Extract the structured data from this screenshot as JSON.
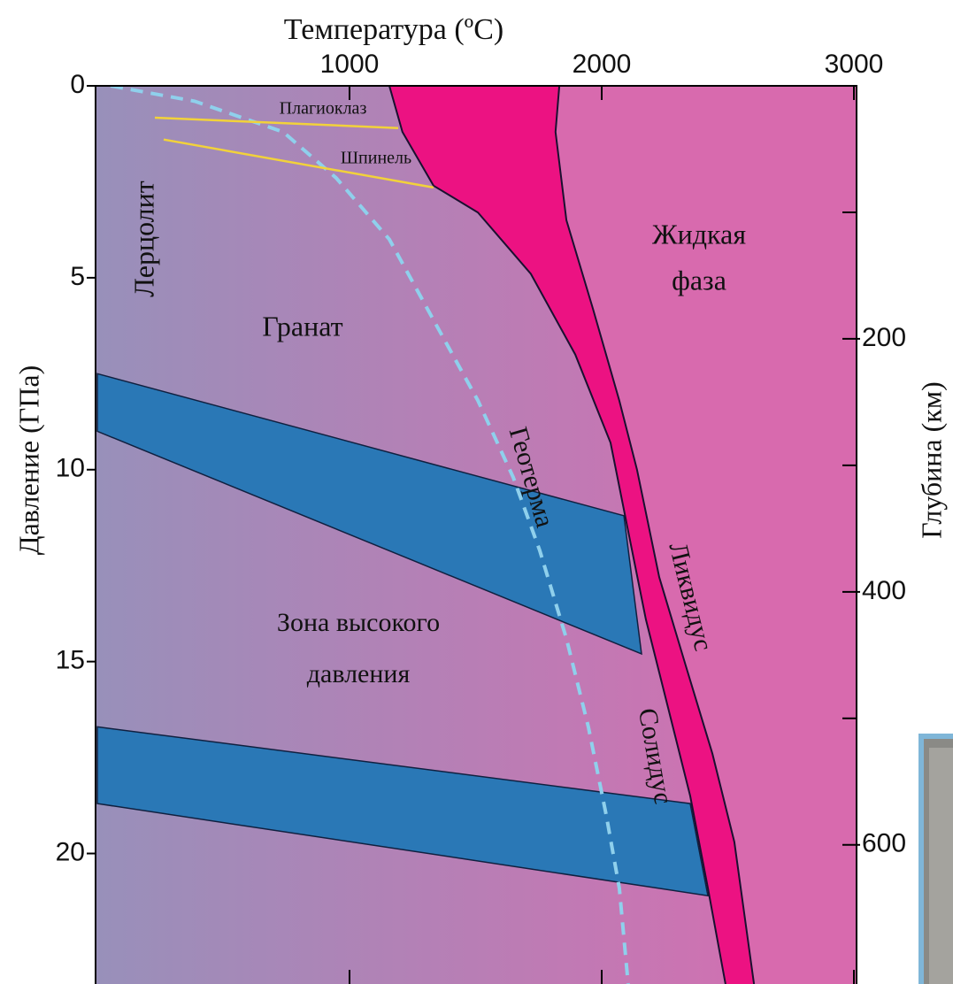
{
  "chart_data": {
    "type": "phase_diagram",
    "title": "Температура (ºC)",
    "ylabel": "Давление (ГПа)",
    "y2label": "Глубина (км)",
    "xlim": [
      0,
      3000
    ],
    "xticks": [
      1000,
      2000,
      3000
    ],
    "ylim": [
      0,
      23.4
    ],
    "yticks": [
      0,
      5,
      10,
      15,
      20
    ],
    "y2lim": [
      0,
      710
    ],
    "y2ticks": [
      200,
      400,
      600
    ],
    "y2minor_ticks": [
      100,
      300,
      500
    ],
    "background_colors": [
      "#9890ba",
      "#d96cb0"
    ],
    "melt_color": "#ec1282",
    "liquid_color": "#d86aae",
    "curves": [
      {
        "name": "Солидус",
        "color": "#1a1030",
        "x": [
          1158,
          1210,
          1333,
          1509,
          1719,
          1895,
          2035,
          2105,
          2175,
          2263,
          2351,
          2421,
          2491
        ],
        "y": [
          0,
          1.2,
          2.6,
          3.3,
          4.9,
          7.0,
          9.3,
          11.6,
          13.9,
          16.2,
          18.5,
          20.9,
          23.4
        ]
      },
      {
        "name": "Ликвидус",
        "color": "#1a1030",
        "x": [
          1832,
          1817,
          1860,
          1965,
          2070,
          2140,
          2228,
          2333,
          2439,
          2526,
          2604
        ],
        "y": [
          0,
          1.2,
          3.5,
          5.8,
          8.2,
          10,
          12.8,
          15.1,
          17.4,
          19.7,
          23.4
        ]
      },
      {
        "name": "Геотерма",
        "color": "#8fd0ec",
        "x": [
          53,
          386,
          737,
          947,
          1158,
          1333,
          1509,
          1649,
          1754,
          1860,
          1947,
          2018,
          2070,
          2105
        ],
        "y": [
          0,
          0.4,
          1.2,
          2.4,
          4,
          6.1,
          8.2,
          10.2,
          12.1,
          14.4,
          16.7,
          19,
          20.9,
          23.4
        ]
      },
      {
        "name": "Плагиоклаз",
        "color": "#f2d23a",
        "x": [
          228,
          1193
        ],
        "y": [
          0.83,
          1.1
        ]
      },
      {
        "name": "Шпинель",
        "color": "#f2d23a",
        "x": [
          263,
          1333
        ],
        "y": [
          1.4,
          2.65
        ]
      }
    ],
    "bands": [
      {
        "color": "#2a78b6",
        "upper": {
          "x": [
            0,
            2088
          ],
          "y": [
            7.5,
            11.2
          ]
        },
        "lower": {
          "x": [
            0,
            2158
          ],
          "y": [
            9,
            14.8
          ]
        }
      },
      {
        "color": "#2a78b6",
        "upper": {
          "x": [
            0,
            2351
          ],
          "y": [
            16.7,
            18.7
          ]
        },
        "lower": {
          "x": [
            0,
            2421
          ],
          "y": [
            18.7,
            21.1
          ]
        }
      }
    ],
    "regions": [
      {
        "lines": [
          "Лерцолит"
        ]
      },
      {
        "lines": [
          "Гранат"
        ]
      },
      {
        "lines": [
          "Жидкая",
          "фаза"
        ]
      },
      {
        "lines": [
          "Зона высокого",
          "давления"
        ]
      }
    ]
  }
}
